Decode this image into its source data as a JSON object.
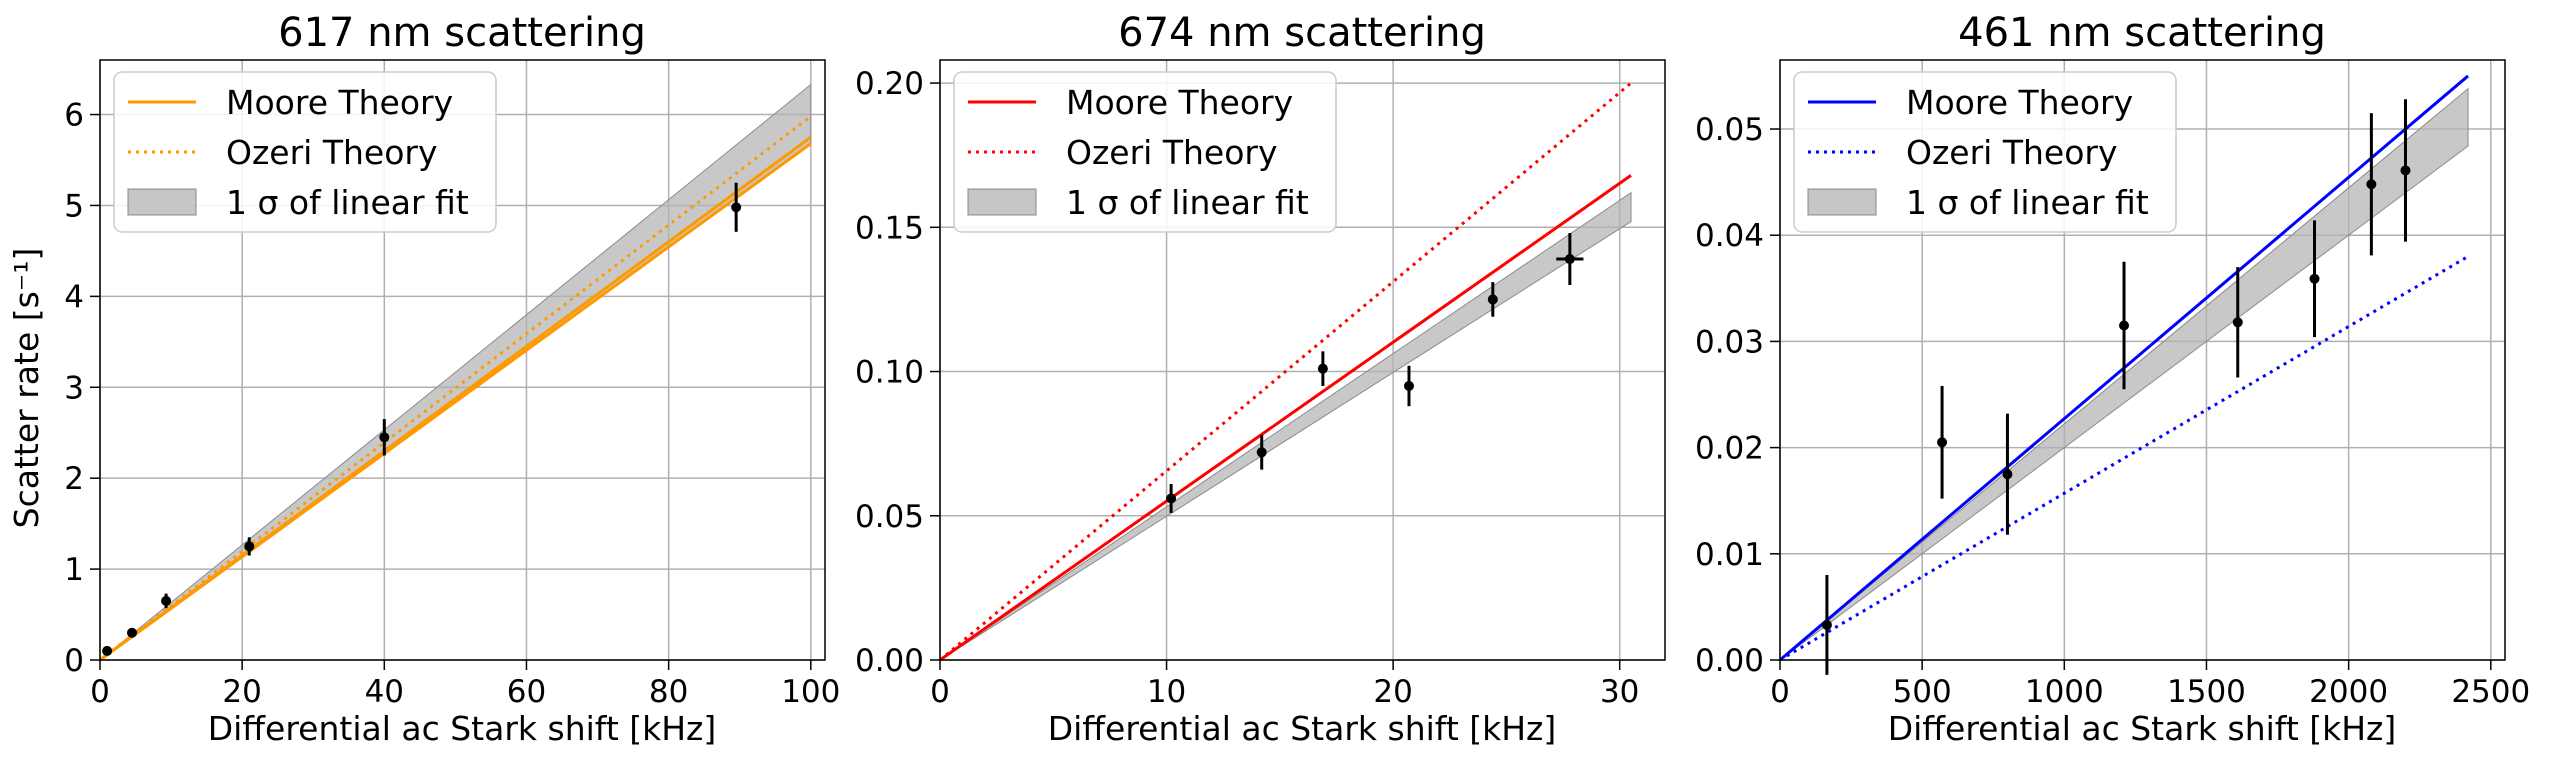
{
  "chart_data": [
    {
      "type": "line",
      "title": "617 nm scattering",
      "xlabel": "Differential ac Stark shift [kHz]",
      "ylabel": "Scatter rate [s⁻¹]",
      "xlim": [
        0,
        102
      ],
      "ylim": [
        0,
        6.6
      ],
      "x_ticks": [
        0,
        20,
        40,
        60,
        80,
        100
      ],
      "y_ticks": [
        0,
        1,
        2,
        3,
        4,
        5,
        6
      ],
      "x_tick_labels": [
        "0",
        "20",
        "40",
        "60",
        "80",
        "100"
      ],
      "y_tick_labels": [
        "0",
        "1",
        "2",
        "3",
        "4",
        "5",
        "6"
      ],
      "grid": true,
      "legend_position": "top-left",
      "legend": [
        "Moore Theory",
        "Ozeri Theory",
        "1 σ of linear fit"
      ],
      "color": "#FF9900",
      "band": {
        "x": [
          0,
          100
        ],
        "lower": [
          0,
          5.68
        ],
        "upper": [
          0,
          6.33
        ]
      },
      "series": [
        {
          "name": "Moore Theory",
          "style": "solid",
          "x": [
            0,
            100
          ],
          "y": [
            0,
            5.68
          ]
        },
        {
          "name": "Moore Theory",
          "style": "solid",
          "x": [
            0,
            100
          ],
          "y": [
            0,
            5.75
          ]
        },
        {
          "name": "Ozeri Theory",
          "style": "dotted",
          "x": [
            0,
            100
          ],
          "y": [
            0,
            5.98
          ]
        }
      ],
      "points": [
        {
          "x": 1.0,
          "y": 0.1,
          "yerr": 0.03,
          "xerr": 0
        },
        {
          "x": 4.5,
          "y": 0.3,
          "yerr": 0.03,
          "xerr": 0
        },
        {
          "x": 9.3,
          "y": 0.65,
          "yerr": 0.08,
          "xerr": 0
        },
        {
          "x": 21.0,
          "y": 1.25,
          "yerr": 0.1,
          "xerr": 0
        },
        {
          "x": 40.0,
          "y": 2.45,
          "yerr": 0.2,
          "xerr": 0
        },
        {
          "x": 89.5,
          "y": 4.98,
          "yerr": 0.27,
          "xerr": 0
        }
      ]
    },
    {
      "type": "line",
      "title": "674 nm scattering",
      "xlabel": "Differential ac Stark shift [kHz]",
      "ylabel": "",
      "xlim": [
        0,
        32
      ],
      "ylim": [
        0,
        0.208
      ],
      "x_ticks": [
        0,
        10,
        20,
        30
      ],
      "y_ticks": [
        0,
        0.05,
        0.1,
        0.15,
        0.2
      ],
      "x_tick_labels": [
        "0",
        "10",
        "20",
        "30"
      ],
      "y_tick_labels": [
        "0.00",
        "0.05",
        "0.10",
        "0.15",
        "0.20"
      ],
      "grid": true,
      "legend_position": "top-left",
      "legend": [
        "Moore Theory",
        "Ozeri Theory",
        "1 σ of linear fit"
      ],
      "color": "#FF0000",
      "band": {
        "x": [
          0,
          30.5
        ],
        "lower": [
          0,
          0.152
        ],
        "upper": [
          0,
          0.162
        ]
      },
      "series": [
        {
          "name": "Moore Theory",
          "style": "solid",
          "x": [
            0,
            30.5
          ],
          "y": [
            0,
            0.168
          ]
        },
        {
          "name": "Ozeri Theory",
          "style": "dotted",
          "x": [
            0,
            30.5
          ],
          "y": [
            0,
            0.2
          ]
        }
      ],
      "points": [
        {
          "x": 10.2,
          "y": 0.056,
          "yerr": 0.005,
          "xerr": 0
        },
        {
          "x": 14.2,
          "y": 0.072,
          "yerr": 0.006,
          "xerr": 0
        },
        {
          "x": 16.9,
          "y": 0.101,
          "yerr": 0.006,
          "xerr": 0
        },
        {
          "x": 20.7,
          "y": 0.095,
          "yerr": 0.007,
          "xerr": 0
        },
        {
          "x": 24.4,
          "y": 0.125,
          "yerr": 0.006,
          "xerr": 0
        },
        {
          "x": 27.8,
          "y": 0.139,
          "yerr": 0.009,
          "xerr": 0.6
        }
      ]
    },
    {
      "type": "line",
      "title": "461 nm scattering",
      "xlabel": "Differential ac Stark shift [kHz]",
      "ylabel": "",
      "xlim": [
        0,
        2550
      ],
      "ylim": [
        0,
        0.0565
      ],
      "x_ticks": [
        0,
        500,
        1000,
        1500,
        2000,
        2500
      ],
      "y_ticks": [
        0,
        0.01,
        0.02,
        0.03,
        0.04,
        0.05
      ],
      "x_tick_labels": [
        "0",
        "500",
        "1000",
        "1500",
        "2000",
        "2500"
      ],
      "y_tick_labels": [
        "0.00",
        "0.01",
        "0.02",
        "0.03",
        "0.04",
        "0.05"
      ],
      "grid": true,
      "legend_position": "top-left",
      "legend": [
        "Moore Theory",
        "Ozeri Theory",
        "1 σ of linear fit"
      ],
      "color": "#0000FF",
      "band": {
        "x": [
          0,
          2420
        ],
        "lower": [
          0,
          0.0484
        ],
        "upper": [
          0,
          0.0538
        ]
      },
      "series": [
        {
          "name": "Moore Theory",
          "style": "solid",
          "x": [
            0,
            2420
          ],
          "y": [
            0,
            0.055
          ]
        },
        {
          "name": "Ozeri Theory",
          "style": "dotted",
          "x": [
            0,
            2420
          ],
          "y": [
            0,
            0.038
          ]
        }
      ],
      "points": [
        {
          "x": 165,
          "y": 0.0033,
          "yerr": 0.0047,
          "xerr": 0
        },
        {
          "x": 570,
          "y": 0.0205,
          "yerr": 0.0053,
          "xerr": 0
        },
        {
          "x": 800,
          "y": 0.0175,
          "yerr": 0.0057,
          "xerr": 0
        },
        {
          "x": 1210,
          "y": 0.0315,
          "yerr": 0.006,
          "xerr": 0
        },
        {
          "x": 1610,
          "y": 0.0318,
          "yerr": 0.0052,
          "xerr": 0
        },
        {
          "x": 1880,
          "y": 0.0359,
          "yerr": 0.0055,
          "xerr": 0
        },
        {
          "x": 2080,
          "y": 0.0448,
          "yerr": 0.0067,
          "xerr": 0
        },
        {
          "x": 2200,
          "y": 0.0461,
          "yerr": 0.0067,
          "xerr": 0
        }
      ]
    }
  ]
}
